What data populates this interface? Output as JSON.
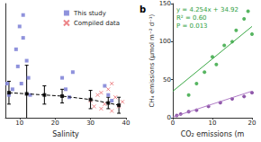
{
  "chart_data": [
    {
      "type": "scatter",
      "xlabel": "Salinity",
      "xlim": [
        6,
        40
      ],
      "xticks": [
        10,
        20,
        30,
        40
      ],
      "ylim": [
        0,
        100
      ],
      "tick_labels": "x",
      "grid": false,
      "legend": "upper right",
      "series": [
        {
          "name": "This study",
          "color": "#7b7fd6",
          "marker": "square",
          "x": [
            9,
            9.5,
            10,
            11,
            11,
            12,
            12.5,
            13,
            10.5,
            8,
            6.5,
            7,
            22,
            23,
            24,
            25,
            35,
            36,
            34
          ],
          "values": [
            60,
            45,
            80,
            90,
            70,
            50,
            35,
            20,
            30,
            25,
            30,
            20,
            35,
            25,
            18,
            40,
            20,
            15,
            28
          ]
        },
        {
          "name": "Compiled data",
          "color": "#e8686b",
          "marker": "cross",
          "x": [
            30,
            31,
            32,
            33,
            34,
            35,
            36,
            37,
            38,
            39,
            33,
            36
          ],
          "values": [
            15,
            10,
            20,
            8,
            12,
            25,
            6,
            18,
            10,
            14,
            22,
            30
          ]
        },
        {
          "type": "line",
          "color": "#000000",
          "line_style": "dashed",
          "marker": "square",
          "x": [
            7,
            12,
            17,
            22,
            30,
            35,
            38
          ],
          "values": [
            22,
            21,
            20,
            19,
            16,
            13,
            11
          ],
          "errors": [
            10,
            25,
            8,
            6,
            8,
            5,
            7
          ]
        }
      ]
    },
    {
      "type": "scatter",
      "title": "b",
      "xlabel": "CO₂ emissions (m",
      "ylabel": "CH₄ emissions (μmol m⁻² d⁻¹)",
      "xlim": [
        0,
        20
      ],
      "xticks": [
        0,
        10,
        20
      ],
      "ylim": [
        0,
        150
      ],
      "yticks": [
        0,
        50,
        100,
        150
      ],
      "grid": false,
      "annotations": [
        "y = 4.254x + 34.92",
        "R² = 0.60",
        "P = 0.013"
      ],
      "annotation_color": "#2e9e3e",
      "series": [
        {
          "color": "#3aa845",
          "marker": "circle",
          "x": [
            4,
            6,
            8,
            10,
            11,
            13,
            15,
            16,
            18,
            19,
            20
          ],
          "values": [
            30,
            45,
            60,
            80,
            70,
            95,
            100,
            115,
            130,
            140,
            110
          ]
        },
        {
          "color": "#7a3a9a",
          "marker": "circle",
          "x": [
            1,
            2,
            4,
            6,
            9,
            12,
            15,
            18,
            20
          ],
          "values": [
            3,
            5,
            8,
            10,
            15,
            20,
            25,
            28,
            33
          ]
        },
        {
          "type": "line",
          "color": "#3aa845",
          "line_style": "solid",
          "x": [
            0,
            20
          ],
          "values": [
            34.92,
            120.0
          ]
        },
        {
          "type": "line",
          "color": "#b07cc6",
          "line_style": "solid",
          "x": [
            0,
            20
          ],
          "values": [
            1,
            35
          ]
        }
      ]
    }
  ]
}
